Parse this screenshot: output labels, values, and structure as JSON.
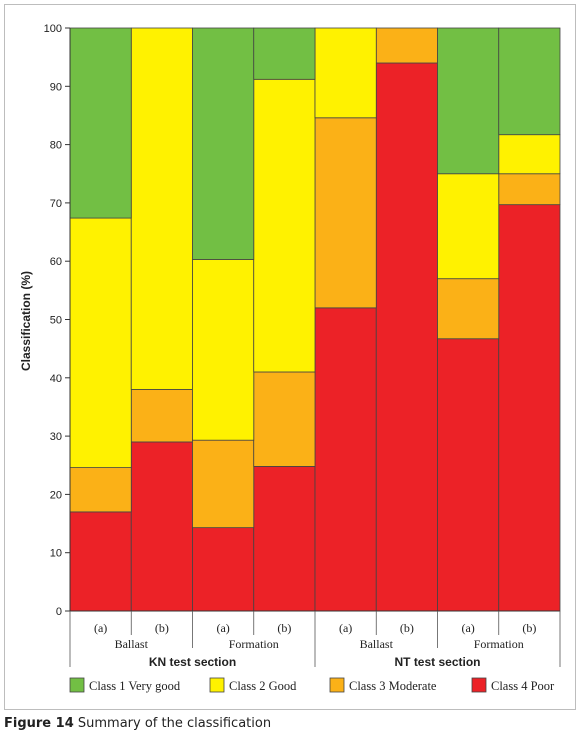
{
  "caption": {
    "figure": "Figure 14",
    "text": "Summary of the classification"
  },
  "chart_data": {
    "type": "bar",
    "stacked": true,
    "ylabel": "Classification (%)",
    "ylim": [
      0,
      100
    ],
    "yticks": [
      0,
      10,
      20,
      30,
      40,
      50,
      60,
      70,
      80,
      90,
      100
    ],
    "grid": false,
    "legend_position": "bottom",
    "categories": [
      "(a)",
      "(b)",
      "(a)",
      "(b)",
      "(a)",
      "(b)",
      "(a)",
      "(b)"
    ],
    "subgroups": [
      {
        "label": "Ballast",
        "span": [
          0,
          1
        ]
      },
      {
        "label": "Formation",
        "span": [
          2,
          3
        ]
      },
      {
        "label": "Ballast",
        "span": [
          4,
          5
        ]
      },
      {
        "label": "Formation",
        "span": [
          6,
          7
        ]
      }
    ],
    "groups": [
      {
        "label": "KN test section",
        "span": [
          0,
          3
        ]
      },
      {
        "label": "NT test section",
        "span": [
          4,
          7
        ]
      }
    ],
    "series": [
      {
        "name": "Class 4 Poor",
        "color": "#ec2227",
        "values": [
          17,
          29,
          14.3,
          24.8,
          52,
          94,
          46.7,
          69.7
        ]
      },
      {
        "name": "Class 3 Moderate",
        "color": "#fbb117",
        "values": [
          7.6,
          9,
          15,
          16.2,
          32.6,
          6,
          10.3,
          5.3
        ]
      },
      {
        "name": "Class 2 Good",
        "color": "#fff200",
        "values": [
          42.8,
          62,
          31,
          50.2,
          15.4,
          0,
          18,
          6.7
        ]
      },
      {
        "name": "Class 1 Very good",
        "color": "#72bf44",
        "values": [
          32.6,
          0,
          39.7,
          8.8,
          0,
          0,
          25,
          18.3
        ]
      }
    ],
    "legend_order": [
      "Class 1 Very good",
      "Class 2 Good",
      "Class 3 Moderate",
      "Class 4 Poor"
    ]
  }
}
